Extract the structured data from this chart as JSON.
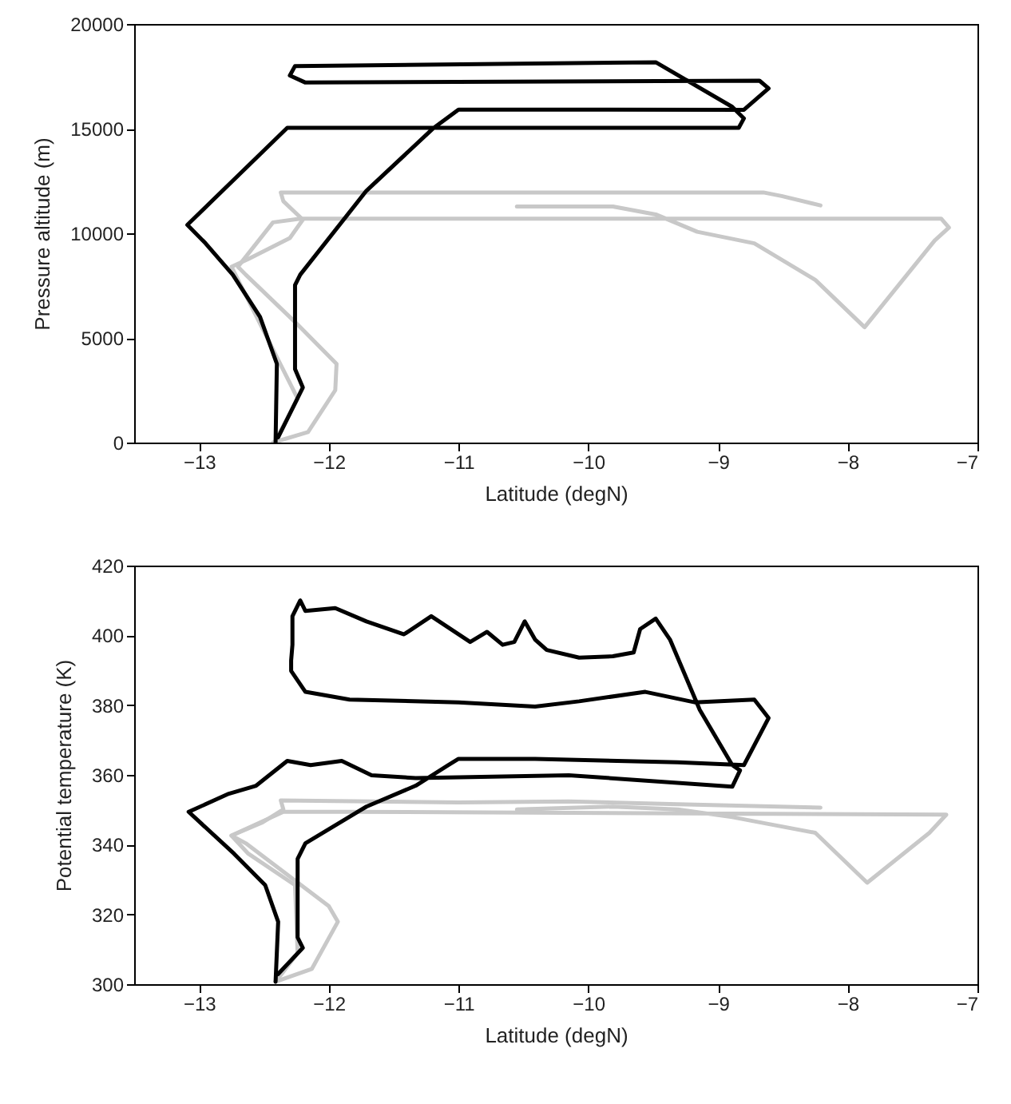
{
  "chart_data": [
    {
      "type": "line",
      "xlabel": "Latitude (degN)",
      "ylabel": "Pressure altitude (m)",
      "xlim": [
        -13.5,
        -7
      ],
      "xticks": [
        -13,
        -12,
        -11,
        -10,
        -9,
        -8,
        -7
      ],
      "ylim": [
        0,
        20000
      ],
      "yticks": [
        0,
        5000,
        10000,
        15000,
        20000
      ],
      "grid": false,
      "legend": false,
      "series": [
        {
          "color": "#c8c8c8",
          "x": [
            -12.43,
            -12.16,
            -11.95,
            -11.94,
            -12.26,
            -12.64,
            -12.7,
            -12.43,
            -12.22,
            -7.28,
            -7.22,
            -7.33,
            -7.87,
            -8.25,
            -8.72,
            -9.16,
            -9.48,
            -9.81,
            -10.55
          ],
          "values": [
            0,
            500,
            2500,
            3760,
            5760,
            8020,
            8400,
            10520,
            10700,
            10700,
            10270,
            9650,
            5510,
            7770,
            9520,
            10070,
            10900,
            11280,
            11280
          ]
        },
        {
          "color": "#c8c8c8",
          "x": [
            -8.21,
            -8.51,
            -8.65,
            -12.37,
            -12.35,
            -12.2,
            -12.3,
            -12.62,
            -12.75,
            -12.24,
            -12.41
          ],
          "values": [
            11330,
            11780,
            11950,
            11950,
            11530,
            10650,
            9770,
            8770,
            8400,
            2100,
            100
          ]
        },
        {
          "color": "#000000",
          "x": [
            -12.41,
            -12.4,
            -12.53,
            -12.74,
            -12.95,
            -13.09,
            -12.32,
            -8.84,
            -8.8,
            -8.89,
            -9.48,
            -12.26,
            -12.3,
            -12.18,
            -8.68,
            -8.61,
            -8.8,
            -11.0,
            -11.19,
            -11.71,
            -12.22,
            -12.26,
            -12.26,
            -12.2,
            -12.39
          ],
          "values": [
            0,
            3760,
            6010,
            8020,
            9520,
            10400,
            15040,
            15040,
            15490,
            16040,
            18170,
            17990,
            17540,
            17200,
            17290,
            16920,
            15900,
            15910,
            15040,
            12030,
            8020,
            7520,
            3510,
            2630,
            250
          ]
        }
      ]
    },
    {
      "type": "line",
      "xlabel": "Latitude (degN)",
      "ylabel": "Potential temperature (K)",
      "xlim": [
        -13.5,
        -7
      ],
      "xticks": [
        -13,
        -12,
        -11,
        -10,
        -9,
        -8,
        -7
      ],
      "ylim": [
        300,
        420
      ],
      "yticks": [
        300,
        320,
        340,
        360,
        380,
        400,
        420
      ],
      "grid": false,
      "legend": false,
      "series": [
        {
          "color": "#c8c8c8",
          "x": [
            -12.41,
            -12.13,
            -11.93,
            -12.0,
            -12.64,
            -12.75,
            -12.35,
            -11.84,
            -7.24,
            -7.37,
            -7.85,
            -8.25,
            -8.89,
            -9.31,
            -9.81,
            -10.55
          ],
          "values": [
            300.7,
            304.4,
            317.9,
            322.4,
            340.4,
            342.6,
            349.4,
            349.4,
            348.6,
            343.4,
            329.1,
            343.4,
            347.9,
            350.1,
            350.9,
            350.1
          ]
        },
        {
          "color": "#c8c8c8",
          "x": [
            -8.21,
            -9.31,
            -10.15,
            -11.0,
            -12.37,
            -12.35,
            -12.51,
            -12.75,
            -12.62,
            -12.26,
            -12.24,
            -12.41
          ],
          "values": [
            350.6,
            351.6,
            352.4,
            352.1,
            352.7,
            350.1,
            346.4,
            342.6,
            337.4,
            328.4,
            308.9,
            300.7
          ]
        },
        {
          "color": "#000000",
          "x": [
            -12.41,
            -12.39,
            -12.49,
            -12.73,
            -13.08,
            -12.77,
            -12.56,
            -12.32,
            -12.14,
            -11.9,
            -11.67,
            -11.33,
            -10.15,
            -8.89,
            -8.83,
            -8.89,
            -9.14,
            -9.37,
            -9.48,
            -9.6,
            -9.65,
            -9.81,
            -10.07,
            -10.32,
            -10.41,
            -10.49,
            -10.57,
            -10.66,
            -10.78,
            -10.91,
            -11.21,
            -11.42,
            -11.71,
            -11.95,
            -12.18,
            -12.22,
            -12.28,
            -12.28,
            -12.29,
            -12.29,
            -12.18,
            -11.84,
            -11.0,
            -10.41,
            -10.07,
            -9.56,
            -9.18,
            -8.72,
            -8.61,
            -8.8,
            -9.31,
            -10.41,
            -11.0,
            -11.08,
            -11.33,
            -11.71,
            -12.18,
            -12.24,
            -12.24,
            -12.2,
            -12.39
          ],
          "values": [
            300.7,
            317.9,
            328.4,
            337.4,
            349.4,
            354.6,
            356.9,
            364.0,
            362.8,
            364.0,
            359.9,
            359.1,
            359.9,
            356.6,
            361.3,
            362.8,
            378.6,
            398.8,
            404.8,
            401.8,
            395.1,
            394.0,
            393.6,
            395.8,
            398.8,
            404.0,
            398.1,
            397.3,
            401.0,
            398.1,
            405.5,
            400.3,
            404.0,
            407.8,
            407.0,
            410.0,
            405.5,
            397.3,
            392.8,
            389.8,
            383.8,
            381.6,
            380.8,
            379.6,
            381.1,
            383.8,
            380.8,
            381.6,
            376.3,
            362.8,
            363.6,
            364.6,
            364.6,
            362.8,
            356.9,
            350.9,
            340.4,
            335.9,
            313.4,
            310.4,
            302.9
          ]
        }
      ]
    }
  ]
}
